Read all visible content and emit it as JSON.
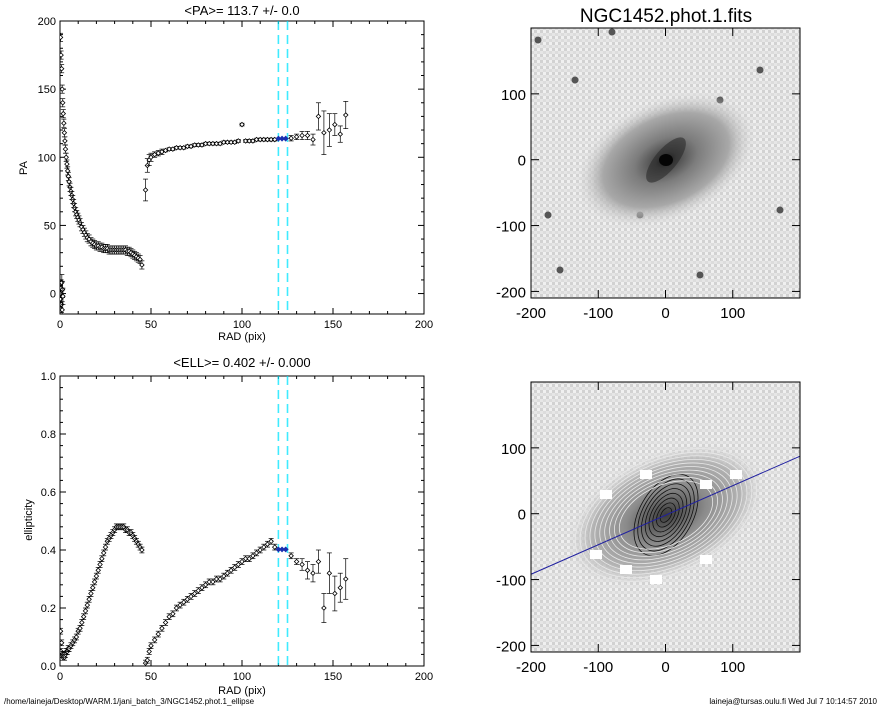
{
  "footer": {
    "path": "/home/laineja/Desktop/WARM.1/jani_batch_3/NGC1452.phot.1_ellipse",
    "stamp": "laineja@tursas.oulu.fi  Wed Jul  7 10:14:57 2010"
  },
  "colors": {
    "axis": "#000000",
    "marker": "#000000",
    "highlight": "#1a2fb0",
    "marker_line": "#00e5ff",
    "pa_line": "#2020a0"
  },
  "chart_data": [
    {
      "type": "scatter",
      "title": "<PA>= 113.7 +/-   0.0",
      "xlabel": "RAD (pix)",
      "ylabel": "PA",
      "xlim": [
        0,
        200
      ],
      "ylim": [
        -15,
        200
      ],
      "xticks": [
        0,
        50,
        100,
        150,
        200
      ],
      "yticks": [
        0,
        50,
        100,
        150,
        200
      ],
      "vlines": [
        120,
        125
      ],
      "inner": {
        "x": [
          0.3,
          0.6,
          0.9,
          1.2,
          1.5,
          1.8,
          2.1,
          2.4,
          2.7,
          3.0,
          3.4,
          3.8,
          4.2,
          4.6,
          5.0,
          5.5,
          6.0,
          6.5,
          7.0,
          7.5,
          8.0,
          8.6,
          9.2,
          9.8,
          10.4,
          11.0,
          11.8,
          12.6,
          13.4,
          14.2,
          15.0,
          16,
          17,
          18,
          19,
          20,
          21,
          22,
          23,
          24,
          25,
          26,
          27,
          28,
          29,
          30,
          31,
          32,
          33,
          34,
          35,
          36,
          37,
          38,
          39,
          40,
          41,
          42,
          43,
          44,
          45
        ],
        "y": [
          188,
          175,
          165,
          150,
          140,
          132,
          125,
          118,
          112,
          106,
          100,
          95,
          90,
          86,
          82,
          78,
          75,
          72,
          69,
          66,
          63,
          60,
          58,
          56,
          54,
          52,
          49,
          47,
          45,
          43,
          41,
          40,
          38,
          37,
          36,
          35,
          35,
          34,
          34,
          33,
          33,
          33,
          32,
          32,
          32,
          32,
          32,
          32,
          32,
          32,
          32,
          32,
          31,
          31,
          30,
          29,
          28,
          27,
          26,
          25,
          21
        ],
        "err": 3
      },
      "outer": {
        "x": [
          47,
          48,
          49,
          50,
          52,
          54,
          56,
          58,
          60,
          62,
          64,
          66,
          68,
          70,
          72,
          74,
          76,
          78,
          80,
          82,
          84,
          86,
          88,
          90,
          92,
          94,
          96,
          98,
          100,
          102,
          104,
          106,
          108,
          110,
          112,
          114,
          116,
          118
        ],
        "y": [
          76,
          94,
          98,
          100,
          102,
          103,
          104,
          105,
          106,
          106,
          107,
          107,
          107,
          108,
          108,
          109,
          109,
          109,
          110,
          110,
          110,
          110,
          110,
          111,
          111,
          111,
          111,
          112,
          124,
          112,
          112,
          112,
          113,
          113,
          113,
          113,
          113,
          113
        ],
        "err": [
          8,
          5,
          4,
          3,
          2,
          2,
          2,
          1,
          1,
          1,
          1,
          1,
          1,
          1,
          1,
          1,
          1,
          1,
          1,
          1,
          1,
          1,
          1,
          1,
          1,
          1,
          1,
          1,
          1,
          1,
          1,
          1,
          1,
          1,
          1,
          1,
          1,
          1
        ]
      },
      "highlight": {
        "x": [
          120,
          122,
          124
        ],
        "y": [
          113.7,
          113.7,
          113.7
        ]
      },
      "tail": {
        "x": [
          127,
          130,
          133,
          136,
          139,
          142,
          145,
          148,
          151,
          154,
          157
        ],
        "y": [
          114,
          115,
          116,
          116,
          113,
          130,
          118,
          120,
          124,
          117,
          131
        ],
        "err": [
          2,
          2,
          3,
          3,
          4,
          10,
          16,
          12,
          8,
          6,
          10
        ]
      },
      "origin_cluster": {
        "x": [
          0.2,
          0.4,
          0.6,
          0.8,
          1.0,
          1.2,
          1.4,
          1.6
        ],
        "y": [
          0,
          -4,
          4,
          -8,
          8,
          -12,
          3,
          -2
        ]
      }
    },
    {
      "type": "scatter",
      "title": "<ELL>= 0.402 +/-  0.000",
      "xlabel": "RAD (pix)",
      "ylabel": "ellipticity",
      "xlim": [
        0,
        200
      ],
      "ylim": [
        0,
        1.0
      ],
      "xticks": [
        0,
        50,
        100,
        150,
        200
      ],
      "yticks": [
        0.0,
        0.2,
        0.4,
        0.6,
        0.8,
        1.0
      ],
      "vlines": [
        120,
        125
      ],
      "inner": {
        "x": [
          0.3,
          0.6,
          0.9,
          1.2,
          1.6,
          2.0,
          2.5,
          3.0,
          3.5,
          4.0,
          4.5,
          5,
          6,
          7,
          8,
          9,
          10,
          11,
          12,
          13,
          14,
          15,
          16,
          17,
          18,
          19,
          20,
          21,
          22,
          23,
          24,
          25,
          26,
          27,
          28,
          29,
          30,
          31,
          32,
          33,
          34,
          35,
          36,
          37,
          38,
          39,
          40,
          41,
          42,
          43,
          44,
          45
        ],
        "y": [
          0.12,
          0.05,
          0.08,
          0.04,
          0.03,
          0.04,
          0.03,
          0.04,
          0.05,
          0.05,
          0.06,
          0.06,
          0.07,
          0.08,
          0.09,
          0.1,
          0.12,
          0.13,
          0.15,
          0.17,
          0.19,
          0.21,
          0.23,
          0.25,
          0.27,
          0.29,
          0.31,
          0.33,
          0.35,
          0.37,
          0.39,
          0.41,
          0.43,
          0.44,
          0.45,
          0.46,
          0.47,
          0.48,
          0.48,
          0.48,
          0.48,
          0.48,
          0.47,
          0.47,
          0.46,
          0.46,
          0.45,
          0.44,
          0.43,
          0.42,
          0.41,
          0.4
        ],
        "err": 0.01
      },
      "outer": {
        "x": [
          47,
          48,
          49,
          50,
          52,
          54,
          56,
          58,
          60,
          62,
          64,
          66,
          68,
          70,
          72,
          74,
          76,
          78,
          80,
          82,
          84,
          86,
          88,
          90,
          92,
          94,
          96,
          98,
          100,
          102,
          104,
          106,
          108,
          110,
          112,
          114,
          116,
          118
        ],
        "y": [
          0.01,
          0.02,
          0.05,
          0.07,
          0.09,
          0.11,
          0.13,
          0.15,
          0.17,
          0.18,
          0.2,
          0.21,
          0.22,
          0.23,
          0.24,
          0.25,
          0.26,
          0.27,
          0.28,
          0.29,
          0.29,
          0.3,
          0.3,
          0.31,
          0.32,
          0.33,
          0.34,
          0.35,
          0.36,
          0.37,
          0.37,
          0.38,
          0.39,
          0.4,
          0.41,
          0.42,
          0.43,
          0.41
        ],
        "err": [
          0.01,
          0.01,
          0.01,
          0.01,
          0.01,
          0.01,
          0.01,
          0.01,
          0.01,
          0.01,
          0.01,
          0.01,
          0.01,
          0.01,
          0.01,
          0.01,
          0.01,
          0.01,
          0.01,
          0.01,
          0.01,
          0.01,
          0.01,
          0.01,
          0.01,
          0.01,
          0.01,
          0.01,
          0.01,
          0.01,
          0.01,
          0.01,
          0.01,
          0.01,
          0.01,
          0.01,
          0.01,
          0.01
        ]
      },
      "highlight": {
        "x": [
          120,
          122,
          124
        ],
        "y": [
          0.402,
          0.402,
          0.402
        ]
      },
      "tail": {
        "x": [
          127,
          130,
          133,
          136,
          139,
          142,
          145,
          148,
          151,
          154,
          157
        ],
        "y": [
          0.38,
          0.36,
          0.35,
          0.33,
          0.32,
          0.36,
          0.2,
          0.32,
          0.25,
          0.27,
          0.3
        ],
        "err": [
          0.01,
          0.01,
          0.02,
          0.03,
          0.03,
          0.04,
          0.05,
          0.07,
          0.06,
          0.05,
          0.07
        ]
      }
    },
    {
      "type": "image",
      "title": "NGC1452.phot.1.fits",
      "xlim": [
        -200,
        200
      ],
      "ylim": [
        -210,
        200
      ],
      "xticks": [
        -200,
        -100,
        0,
        100
      ],
      "yticks": [
        -200,
        -100,
        0,
        100
      ],
      "galaxy": {
        "pa_deg": 25,
        "major": 130,
        "minor": 80
      }
    },
    {
      "type": "image",
      "title": "",
      "xlim": [
        -200,
        200
      ],
      "ylim": [
        -210,
        200
      ],
      "xticks": [
        -200,
        -100,
        0,
        100
      ],
      "yticks": [
        -200,
        -100,
        0,
        100
      ],
      "pa_line": {
        "angle_deg": 23.7
      }
    }
  ]
}
